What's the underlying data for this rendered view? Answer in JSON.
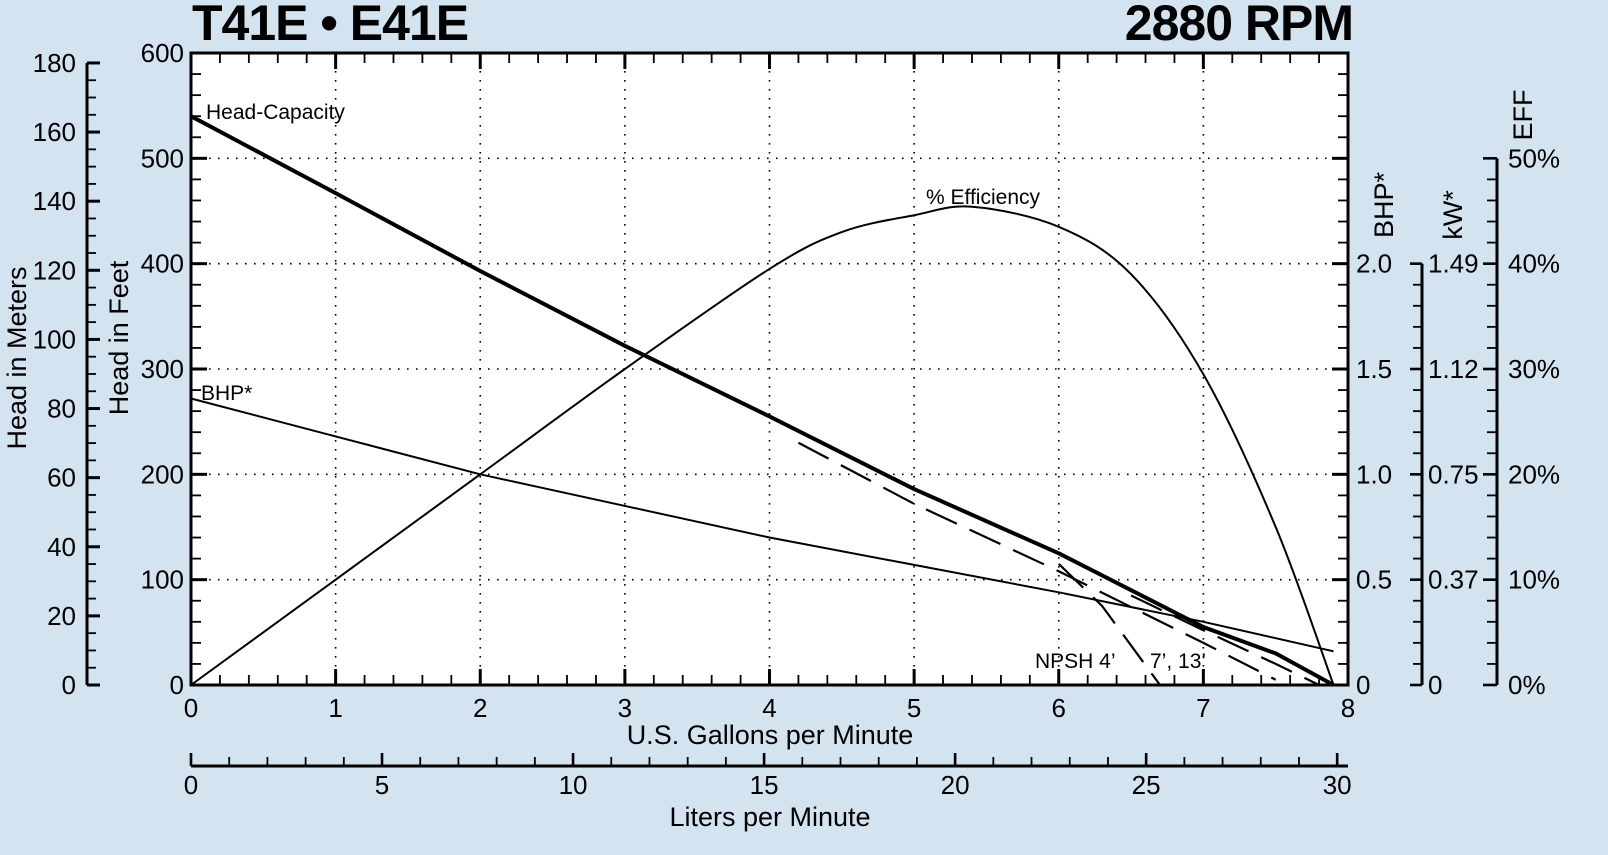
{
  "header": {
    "model": "T41E • E41E",
    "speed": "2880 RPM"
  },
  "axes": {
    "left_outer": {
      "title": "Head in Meters",
      "ticks": [
        "0",
        "20",
        "40",
        "60",
        "80",
        "100",
        "120",
        "140",
        "160",
        "180"
      ]
    },
    "left_inner": {
      "title": "Head in Feet",
      "ticks": [
        "0",
        "100",
        "200",
        "300",
        "400",
        "500",
        "600"
      ]
    },
    "bottom_primary": {
      "title": "U.S. Gallons per Minute",
      "ticks": [
        "0",
        "1",
        "2",
        "3",
        "4",
        "5",
        "6",
        "7",
        "8"
      ]
    },
    "bottom_secondary": {
      "title": "Liters per Minute",
      "ticks": [
        "0",
        "5",
        "10",
        "15",
        "20",
        "25",
        "30"
      ]
    },
    "right_bhp": {
      "title": "BHP*",
      "ticks": [
        "0",
        "0.5",
        "1.0",
        "1.5",
        "2.0"
      ]
    },
    "right_kw": {
      "title": "kW*",
      "ticks": [
        "0",
        "0.37",
        "0.75",
        "1.12",
        "1.49"
      ]
    },
    "right_eff": {
      "title": "EFF",
      "ticks": [
        "0%",
        "10%",
        "20%",
        "30%",
        "40%",
        "50%"
      ]
    }
  },
  "annotations": {
    "head_capacity": "Head-Capacity",
    "efficiency": "% Efficiency",
    "bhp": "BHP*",
    "npsh_a": "NPSH 4’",
    "npsh_b": "7’, 13’"
  },
  "chart_data": {
    "type": "line",
    "title": "T41E • E41E — 2880 RPM",
    "xlabel": "U.S. Gallons per Minute",
    "xlabel_secondary": "Liters per Minute",
    "ylabel": "Head in Feet",
    "ylabel_secondary": "Head in Meters",
    "xlim": [
      0,
      8
    ],
    "ylim": [
      0,
      600
    ],
    "grid": true,
    "series": [
      {
        "name": "Head-Capacity",
        "axis": "Head in Feet",
        "x": [
          0,
          1,
          2,
          3,
          4,
          5,
          6,
          7,
          7.5,
          7.9
        ],
        "values": [
          540,
          467,
          393,
          322,
          255,
          186,
          125,
          55,
          30,
          0
        ]
      },
      {
        "name": "BHP*",
        "axis": "BHP (0–2.0)",
        "x": [
          0,
          1,
          2,
          3,
          4,
          5,
          6,
          7,
          7.9
        ],
        "values": [
          1.36,
          1.18,
          1.0,
          0.85,
          0.7,
          0.57,
          0.44,
          0.3,
          0.16
        ]
      },
      {
        "name": "% Efficiency",
        "axis": "EFF (0–50%)",
        "x": [
          0,
          1,
          2,
          3,
          4,
          4.5,
          5,
          5.4,
          6,
          6.5,
          7,
          7.5,
          7.9
        ],
        "values": [
          0,
          10,
          20,
          30,
          39.5,
          43,
          44.6,
          45.4,
          43.5,
          39,
          29.5,
          15,
          0
        ]
      },
      {
        "name": "NPSH 4’",
        "style": "dashed",
        "axis": "Head in Feet",
        "x": [
          6.0,
          6.3,
          6.7
        ],
        "values": [
          115,
          75,
          0
        ]
      },
      {
        "name": "NPSH 7’",
        "style": "dashed",
        "axis": "Head in Feet",
        "x": [
          4.2,
          5,
          6,
          7,
          7.5
        ],
        "values": [
          230,
          172,
          108,
          40,
          5
        ]
      },
      {
        "name": "NPSH 13’",
        "style": "dashed",
        "axis": "Head in Feet",
        "x": [
          6.5,
          7,
          7.5,
          7.8
        ],
        "values": [
          85,
          52,
          20,
          0
        ]
      }
    ],
    "secondary_axes": {
      "meters": [
        0,
        180
      ],
      "bhp": [
        0,
        2.0
      ],
      "kw": [
        0,
        1.49
      ],
      "eff_percent": [
        0,
        50
      ],
      "liters_per_minute": [
        0,
        30
      ]
    }
  }
}
